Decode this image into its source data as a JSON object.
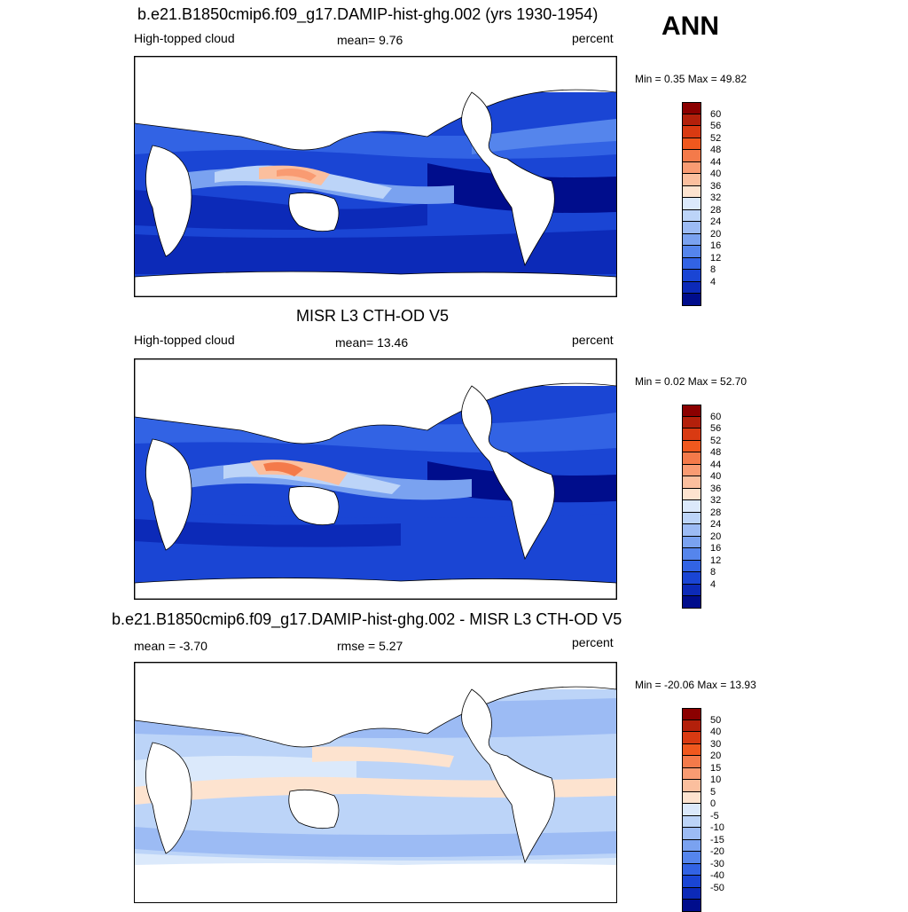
{
  "season": "ANN",
  "panels": [
    {
      "title": "b.e21.B1850cmip6.f09_g17.DAMIP-hist-ghg.002 (yrs 1930-1954)",
      "left_label": "High-topped cloud",
      "center_label": "mean=   9.76",
      "right_label": "percent",
      "minmax": "Min =   0.35 Max =  49.82",
      "colorbar": {
        "colors": [
          "#8b0000",
          "#b3200b",
          "#d93a12",
          "#f0581e",
          "#f47a4a",
          "#f99b72",
          "#fbbf9e",
          "#fde3cf",
          "#dbe9fb",
          "#bcd4f8",
          "#9cbbf4",
          "#7aa2f0",
          "#5585ec",
          "#3263e4",
          "#1a45d4",
          "#0c2ab8",
          "#000d8c"
        ],
        "labels": [
          "60",
          "56",
          "52",
          "48",
          "44",
          "40",
          "36",
          "32",
          "28",
          "24",
          "20",
          "16",
          "12",
          "8",
          "4"
        ]
      }
    },
    {
      "title": "MISR L3 CTH-OD V5",
      "left_label": "High-topped cloud",
      "center_label": "mean=  13.46",
      "right_label": "percent",
      "minmax": "Min =   0.02 Max =  52.70",
      "colorbar": {
        "colors": [
          "#8b0000",
          "#b3200b",
          "#d93a12",
          "#f0581e",
          "#f47a4a",
          "#f99b72",
          "#fbbf9e",
          "#fde3cf",
          "#dbe9fb",
          "#bcd4f8",
          "#9cbbf4",
          "#7aa2f0",
          "#5585ec",
          "#3263e4",
          "#1a45d4",
          "#0c2ab8",
          "#000d8c"
        ],
        "labels": [
          "60",
          "56",
          "52",
          "48",
          "44",
          "40",
          "36",
          "32",
          "28",
          "24",
          "20",
          "16",
          "12",
          "8",
          "4"
        ]
      }
    },
    {
      "title": "b.e21.B1850cmip6.f09_g17.DAMIP-hist-ghg.002 - MISR L3 CTH-OD V5",
      "left_label": "mean =  -3.70",
      "center_label": "rmse =    5.27",
      "right_label": "percent",
      "minmax": "Min = -20.06 Max =  13.93",
      "colorbar": {
        "colors": [
          "#8b0000",
          "#b3200b",
          "#d93a12",
          "#f0581e",
          "#f47a4a",
          "#f99b72",
          "#fbbf9e",
          "#fde3cf",
          "#dbe9fb",
          "#bcd4f8",
          "#9cbbf4",
          "#7aa2f0",
          "#5585ec",
          "#3263e4",
          "#1a45d4",
          "#0c2ab8",
          "#000d8c"
        ],
        "labels": [
          "50",
          "40",
          "30",
          "20",
          "15",
          "10",
          "5",
          "0",
          "-5",
          "-10",
          "-15",
          "-20",
          "-30",
          "-40",
          "-50"
        ]
      }
    }
  ]
}
